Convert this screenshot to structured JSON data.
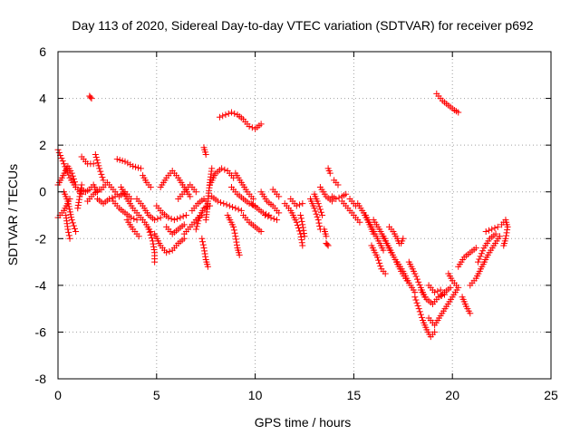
{
  "chart_data": {
    "type": "scatter",
    "title": "Day 113 of 2020, Sidereal Day-to-day VTEC variation (SDTVAR) for receiver p692",
    "xlabel": "GPS time / hours",
    "ylabel": "SDTVAR / TECUs",
    "xlim": [
      0,
      25
    ],
    "ylim": [
      -8,
      6
    ],
    "xticks": [
      0,
      5,
      10,
      15,
      20,
      25
    ],
    "yticks": [
      -8,
      -6,
      -4,
      -2,
      0,
      2,
      4,
      6
    ],
    "grid": true,
    "marker": "+",
    "color": "#ff0000",
    "series": [
      {
        "name": "SDTVAR",
        "x": [],
        "y": []
      }
    ],
    "segments": [
      [
        [
          0.0,
          -1.1
        ],
        [
          0.3,
          -0.8
        ],
        [
          0.6,
          -0.3
        ]
      ],
      [
        [
          0.0,
          1.8
        ],
        [
          0.3,
          1.2
        ],
        [
          0.6,
          0.6
        ],
        [
          0.9,
          0.2
        ],
        [
          1.2,
          -0.1
        ]
      ],
      [
        [
          0.0,
          0.3
        ],
        [
          0.2,
          0.6
        ],
        [
          0.5,
          1.1
        ],
        [
          0.7,
          0.8
        ],
        [
          0.9,
          0.3
        ]
      ],
      [
        [
          0.3,
          0.0
        ],
        [
          0.5,
          -0.4
        ],
        [
          0.7,
          -1.2
        ],
        [
          0.9,
          -1.7
        ]
      ],
      [
        [
          0.4,
          -1.0
        ],
        [
          0.5,
          -1.6
        ],
        [
          0.6,
          -2.0
        ]
      ],
      [
        [
          1.0,
          -0.7
        ],
        [
          1.1,
          -0.2
        ],
        [
          1.2,
          0.3
        ]
      ],
      [
        [
          1.2,
          1.5
        ],
        [
          1.5,
          1.2
        ],
        [
          1.8,
          1.2
        ]
      ],
      [
        [
          1.2,
          0.1
        ],
        [
          1.4,
          0.0
        ],
        [
          1.6,
          0.1
        ],
        [
          1.8,
          0.3
        ],
        [
          2.0,
          0.0
        ]
      ],
      [
        [
          1.5,
          -0.4
        ],
        [
          1.8,
          -0.1
        ],
        [
          2.1,
          0.1
        ]
      ],
      [
        [
          1.6,
          4.1
        ],
        [
          1.7,
          4.0
        ]
      ],
      [
        [
          1.9,
          1.6
        ],
        [
          2.1,
          1.0
        ],
        [
          2.3,
          0.5
        ]
      ],
      [
        [
          2.0,
          -0.3
        ],
        [
          2.3,
          -0.5
        ],
        [
          2.6,
          -0.3
        ],
        [
          2.9,
          -0.2
        ]
      ],
      [
        [
          2.2,
          0.1
        ],
        [
          2.5,
          0.4
        ],
        [
          2.8,
          0.1
        ],
        [
          3.1,
          -0.2
        ],
        [
          3.4,
          0.0
        ],
        [
          3.7,
          -0.3
        ]
      ],
      [
        [
          2.8,
          -0.4
        ],
        [
          3.1,
          -0.7
        ],
        [
          3.4,
          -0.9
        ],
        [
          3.7,
          -1.1
        ],
        [
          4.0,
          -1.2
        ]
      ],
      [
        [
          3.0,
          1.4
        ],
        [
          3.4,
          1.3
        ],
        [
          3.8,
          1.1
        ],
        [
          4.2,
          1.0
        ]
      ],
      [
        [
          3.2,
          0.2
        ],
        [
          3.5,
          -0.3
        ],
        [
          3.8,
          -0.7
        ],
        [
          4.1,
          -1.0
        ],
        [
          4.4,
          -1.3
        ],
        [
          4.7,
          -1.7
        ]
      ],
      [
        [
          3.5,
          -1.2
        ],
        [
          3.8,
          -1.6
        ],
        [
          4.1,
          -1.9
        ]
      ],
      [
        [
          4.0,
          -0.3
        ],
        [
          4.3,
          -0.6
        ],
        [
          4.6,
          -1.0
        ],
        [
          4.9,
          -1.2
        ],
        [
          5.2,
          -1.1
        ]
      ],
      [
        [
          4.3,
          0.7
        ],
        [
          4.5,
          0.4
        ],
        [
          4.7,
          0.2
        ]
      ],
      [
        [
          4.6,
          -1.6
        ],
        [
          4.8,
          -2.1
        ],
        [
          4.9,
          -2.6
        ],
        [
          4.9,
          -3.0
        ]
      ],
      [
        [
          4.9,
          -1.8
        ],
        [
          5.2,
          -2.3
        ],
        [
          5.5,
          -2.6
        ],
        [
          5.8,
          -2.5
        ],
        [
          6.1,
          -2.2
        ],
        [
          6.4,
          -2.0
        ]
      ],
      [
        [
          5.0,
          -0.6
        ],
        [
          5.3,
          -0.9
        ],
        [
          5.6,
          -1.1
        ],
        [
          5.9,
          -1.2
        ],
        [
          6.2,
          -1.1
        ],
        [
          6.5,
          -1.0
        ]
      ],
      [
        [
          5.2,
          0.2
        ],
        [
          5.5,
          0.6
        ],
        [
          5.8,
          0.9
        ],
        [
          6.1,
          0.6
        ],
        [
          6.4,
          0.2
        ],
        [
          6.7,
          -0.2
        ]
      ],
      [
        [
          5.5,
          -1.5
        ],
        [
          5.8,
          -1.8
        ],
        [
          6.1,
          -1.6
        ],
        [
          6.4,
          -1.4
        ]
      ],
      [
        [
          6.1,
          -0.3
        ],
        [
          6.4,
          0.0
        ],
        [
          6.7,
          0.3
        ],
        [
          7.0,
          0.0
        ]
      ],
      [
        [
          6.4,
          -1.8
        ],
        [
          6.7,
          -1.5
        ],
        [
          7.0,
          -1.2
        ],
        [
          7.3,
          -1.0
        ]
      ],
      [
        [
          6.8,
          -0.8
        ],
        [
          7.1,
          -0.5
        ],
        [
          7.4,
          -0.3
        ],
        [
          7.7,
          -0.6
        ]
      ],
      [
        [
          7.0,
          -1.6
        ],
        [
          7.2,
          -1.0
        ],
        [
          7.4,
          -0.7
        ],
        [
          7.6,
          -0.6
        ]
      ],
      [
        [
          7.3,
          -2.0
        ],
        [
          7.4,
          -2.4
        ],
        [
          7.5,
          -2.9
        ],
        [
          7.6,
          -3.2
        ]
      ],
      [
        [
          7.4,
          1.9
        ],
        [
          7.5,
          1.6
        ]
      ],
      [
        [
          7.5,
          -1.2
        ],
        [
          7.6,
          -0.4
        ],
        [
          7.7,
          0.4
        ],
        [
          7.8,
          1.0
        ]
      ],
      [
        [
          7.7,
          0.3
        ],
        [
          8.0,
          0.8
        ],
        [
          8.3,
          1.0
        ],
        [
          8.6,
          0.9
        ],
        [
          8.9,
          0.6
        ]
      ],
      [
        [
          7.8,
          -0.2
        ],
        [
          8.1,
          -0.4
        ],
        [
          8.4,
          -0.5
        ],
        [
          8.7,
          -0.6
        ],
        [
          9.0,
          -0.7
        ],
        [
          9.3,
          -0.8
        ]
      ],
      [
        [
          8.2,
          3.2
        ],
        [
          8.5,
          3.3
        ],
        [
          8.8,
          3.4
        ],
        [
          9.1,
          3.3
        ],
        [
          9.4,
          3.1
        ],
        [
          9.7,
          2.8
        ],
        [
          10.0,
          2.7
        ],
        [
          10.3,
          2.9
        ]
      ],
      [
        [
          8.6,
          -1.0
        ],
        [
          8.9,
          -1.5
        ],
        [
          9.0,
          -1.9
        ],
        [
          9.1,
          -2.4
        ],
        [
          9.2,
          -2.7
        ]
      ],
      [
        [
          8.8,
          0.2
        ],
        [
          9.1,
          -0.1
        ],
        [
          9.4,
          -0.3
        ],
        [
          9.7,
          -0.5
        ],
        [
          10.0,
          -0.6
        ]
      ],
      [
        [
          9.0,
          0.8
        ],
        [
          9.3,
          0.4
        ],
        [
          9.6,
          0.0
        ],
        [
          9.9,
          -0.3
        ]
      ],
      [
        [
          9.4,
          -1.0
        ],
        [
          9.7,
          -1.3
        ],
        [
          10.0,
          -1.5
        ],
        [
          10.3,
          -1.7
        ]
      ],
      [
        [
          9.8,
          -0.5
        ],
        [
          10.1,
          -0.7
        ],
        [
          10.4,
          -0.9
        ],
        [
          10.7,
          -1.0
        ]
      ],
      [
        [
          10.3,
          0.0
        ],
        [
          10.6,
          -0.4
        ],
        [
          10.9,
          -0.6
        ],
        [
          11.2,
          -0.9
        ]
      ],
      [
        [
          10.5,
          -1.0
        ],
        [
          10.8,
          -1.1
        ],
        [
          11.1,
          -1.2
        ]
      ],
      [
        [
          10.9,
          0.1
        ],
        [
          11.2,
          -0.2
        ]
      ],
      [
        [
          11.5,
          -0.5
        ],
        [
          11.8,
          -0.8
        ],
        [
          12.1,
          -1.3
        ],
        [
          12.3,
          -1.8
        ],
        [
          12.4,
          -2.3
        ]
      ],
      [
        [
          11.8,
          -0.3
        ],
        [
          12.1,
          -0.6
        ],
        [
          12.4,
          -0.5
        ]
      ],
      [
        [
          12.3,
          -1.0
        ],
        [
          12.4,
          -1.4
        ],
        [
          12.5,
          -1.9
        ]
      ],
      [
        [
          12.8,
          -0.3
        ],
        [
          13.0,
          -0.7
        ],
        [
          13.2,
          -1.2
        ],
        [
          13.3,
          -1.6
        ]
      ],
      [
        [
          13.0,
          -0.1
        ],
        [
          13.2,
          -0.5
        ],
        [
          13.4,
          -1.0
        ]
      ],
      [
        [
          13.3,
          0.2
        ],
        [
          13.6,
          -0.2
        ],
        [
          13.9,
          -0.4
        ]
      ],
      [
        [
          13.5,
          -1.6
        ],
        [
          13.6,
          -1.9
        ]
      ],
      [
        [
          13.6,
          -2.2
        ],
        [
          13.7,
          -2.3
        ]
      ],
      [
        [
          13.7,
          1.0
        ],
        [
          13.8,
          0.8
        ]
      ],
      [
        [
          13.9,
          -0.2
        ],
        [
          14.1,
          -0.3
        ],
        [
          14.4,
          -0.2
        ],
        [
          14.6,
          -0.1
        ]
      ],
      [
        [
          14.0,
          0.5
        ],
        [
          14.2,
          0.3
        ]
      ],
      [
        [
          14.4,
          -0.4
        ],
        [
          14.7,
          -0.7
        ],
        [
          15.0,
          -1.0
        ],
        [
          15.3,
          -1.3
        ]
      ],
      [
        [
          14.8,
          -0.3
        ],
        [
          15.1,
          -0.6
        ]
      ],
      [
        [
          15.2,
          -0.5
        ],
        [
          15.5,
          -0.9
        ],
        [
          15.8,
          -1.4
        ],
        [
          16.0,
          -1.8
        ]
      ],
      [
        [
          15.6,
          -1.0
        ],
        [
          15.9,
          -1.5
        ],
        [
          16.2,
          -2.0
        ],
        [
          16.5,
          -2.5
        ]
      ],
      [
        [
          15.9,
          -2.3
        ],
        [
          16.2,
          -2.8
        ],
        [
          16.4,
          -3.3
        ],
        [
          16.6,
          -3.5
        ]
      ],
      [
        [
          16.0,
          -1.2
        ],
        [
          16.3,
          -1.6
        ],
        [
          16.6,
          -2.1
        ],
        [
          16.9,
          -2.6
        ]
      ],
      [
        [
          16.5,
          -1.9
        ],
        [
          16.8,
          -2.4
        ],
        [
          17.1,
          -2.9
        ],
        [
          17.4,
          -3.4
        ],
        [
          17.7,
          -3.8
        ]
      ],
      [
        [
          16.8,
          -1.5
        ],
        [
          17.0,
          -1.7
        ],
        [
          17.2,
          -2.0
        ],
        [
          17.3,
          -2.2
        ]
      ],
      [
        [
          17.2,
          -3.0
        ],
        [
          17.5,
          -3.4
        ],
        [
          17.8,
          -3.9
        ],
        [
          18.1,
          -4.3
        ]
      ],
      [
        [
          17.4,
          -2.2
        ],
        [
          17.5,
          -2.0
        ]
      ],
      [
        [
          17.8,
          -3.0
        ],
        [
          18.1,
          -3.5
        ],
        [
          18.4,
          -4.1
        ],
        [
          18.6,
          -4.5
        ]
      ],
      [
        [
          18.1,
          -4.5
        ],
        [
          18.3,
          -5.0
        ],
        [
          18.5,
          -5.5
        ],
        [
          18.7,
          -5.9
        ],
        [
          18.9,
          -6.2
        ],
        [
          19.1,
          -6.0
        ]
      ],
      [
        [
          18.4,
          -4.2
        ],
        [
          18.7,
          -4.6
        ],
        [
          19.0,
          -4.8
        ],
        [
          19.3,
          -4.5
        ],
        [
          19.6,
          -4.3
        ],
        [
          19.9,
          -4.1
        ]
      ],
      [
        [
          18.8,
          -4.0
        ],
        [
          19.1,
          -4.3
        ],
        [
          19.4,
          -4.2
        ]
      ],
      [
        [
          18.8,
          -5.4
        ],
        [
          19.1,
          -5.7
        ],
        [
          19.4,
          -5.3
        ],
        [
          19.7,
          -4.9
        ],
        [
          20.0,
          -4.5
        ],
        [
          20.3,
          -4.1
        ]
      ],
      [
        [
          19.2,
          4.2
        ],
        [
          19.5,
          3.9
        ],
        [
          19.8,
          3.7
        ],
        [
          20.1,
          3.5
        ],
        [
          20.3,
          3.4
        ]
      ],
      [
        [
          19.3,
          -4.5
        ],
        [
          19.6,
          -4.4
        ]
      ],
      [
        [
          19.8,
          -3.5
        ],
        [
          20.0,
          -3.8
        ],
        [
          20.2,
          -4.0
        ]
      ],
      [
        [
          20.3,
          -3.2
        ],
        [
          20.6,
          -2.8
        ],
        [
          20.9,
          -2.6
        ],
        [
          21.2,
          -2.4
        ]
      ],
      [
        [
          20.5,
          -4.5
        ],
        [
          20.7,
          -4.9
        ],
        [
          20.9,
          -5.2
        ]
      ],
      [
        [
          20.9,
          -4.0
        ],
        [
          21.2,
          -3.7
        ],
        [
          21.5,
          -3.2
        ],
        [
          21.8,
          -2.7
        ],
        [
          22.1,
          -2.3
        ],
        [
          22.4,
          -1.9
        ]
      ],
      [
        [
          21.3,
          -3.0
        ],
        [
          21.6,
          -2.4
        ],
        [
          21.9,
          -2.0
        ],
        [
          22.2,
          -1.8
        ]
      ],
      [
        [
          21.7,
          -1.7
        ],
        [
          22.0,
          -1.6
        ],
        [
          22.3,
          -1.5
        ]
      ],
      [
        [
          22.5,
          -1.4
        ],
        [
          22.7,
          -1.2
        ],
        [
          22.8,
          -1.5
        ],
        [
          22.7,
          -2.0
        ],
        [
          22.6,
          -2.3
        ]
      ]
    ]
  }
}
